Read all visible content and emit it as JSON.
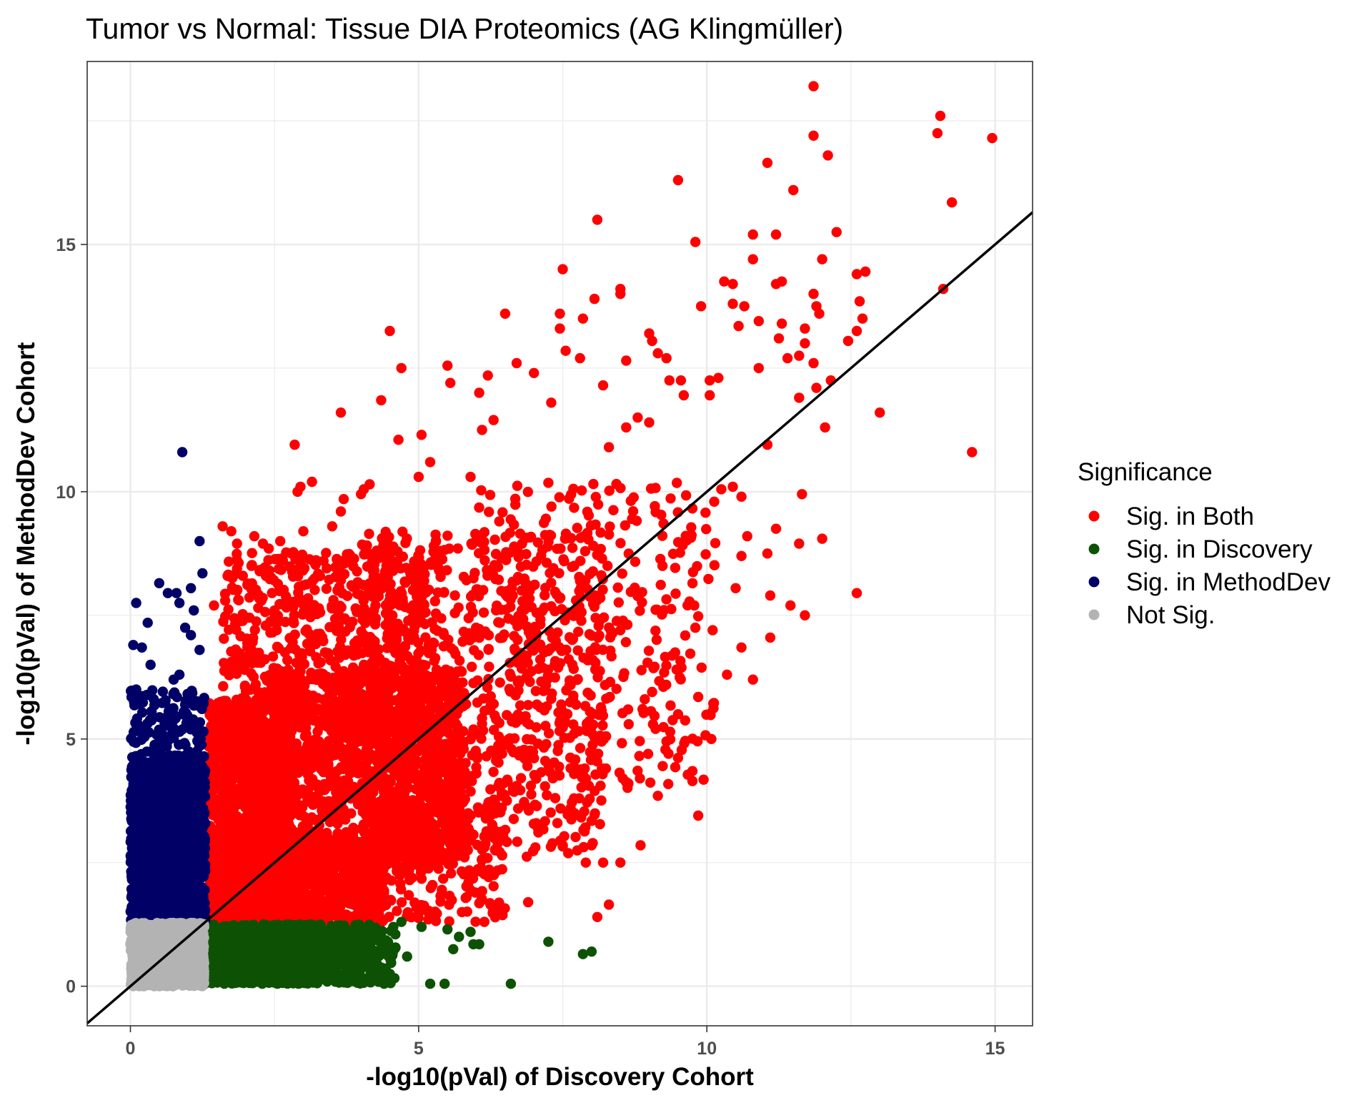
{
  "chart_data": {
    "type": "scatter",
    "title": "Tumor vs Normal: Tissue DIA Proteomics (AG Klingmüller)",
    "xlabel": "-log10(pVal) of Discovery Cohort",
    "ylabel": "-log10(pVal) of MethodDev Cohort",
    "xlim": [
      -0.75,
      15.65
    ],
    "ylim": [
      -0.8,
      18.7
    ],
    "x_ticks": [
      0,
      5,
      10,
      15
    ],
    "y_ticks": [
      0,
      5,
      10,
      15
    ],
    "x_tick_labels": [
      "0",
      "5",
      "10",
      "15"
    ],
    "y_tick_labels": [
      "0",
      "5",
      "10",
      "15"
    ],
    "grid": true,
    "reference_line": {
      "slope": 1,
      "intercept": 0
    },
    "legend": {
      "title": "Significance",
      "position": "right",
      "entries": [
        {
          "label": "Sig. in Both",
          "color": "#ff0000"
        },
        {
          "label": "Sig. in Discovery",
          "color": "#0d5204"
        },
        {
          "label": "Sig. in MethodDev",
          "color": "#000066"
        },
        {
          "label": "Not Sig.",
          "color": "#b3b3b3"
        }
      ]
    },
    "series": [
      {
        "name": "Sig. in Both",
        "color": "#ff0000",
        "points": [
          [
            11.85,
            18.2
          ],
          [
            14.05,
            17.6
          ],
          [
            14.0,
            17.25
          ],
          [
            11.85,
            17.2
          ],
          [
            14.95,
            17.15
          ],
          [
            12.1,
            16.8
          ],
          [
            11.05,
            16.65
          ],
          [
            9.5,
            16.3
          ],
          [
            11.5,
            16.1
          ],
          [
            14.25,
            15.85
          ],
          [
            8.1,
            15.5
          ],
          [
            12.25,
            15.25
          ],
          [
            10.8,
            15.2
          ],
          [
            11.2,
            15.2
          ],
          [
            9.8,
            15.05
          ],
          [
            10.8,
            14.7
          ],
          [
            12.0,
            14.7
          ],
          [
            7.5,
            14.5
          ],
          [
            12.75,
            14.45
          ],
          [
            12.6,
            14.4
          ],
          [
            11.3,
            14.25
          ],
          [
            10.3,
            14.25
          ],
          [
            10.45,
            14.2
          ],
          [
            11.2,
            14.2
          ],
          [
            14.1,
            14.1
          ],
          [
            8.5,
            14.1
          ],
          [
            8.5,
            14.0
          ],
          [
            11.85,
            14.0
          ],
          [
            8.05,
            13.9
          ],
          [
            12.65,
            13.85
          ],
          [
            10.45,
            13.8
          ],
          [
            11.9,
            13.75
          ],
          [
            10.65,
            13.75
          ],
          [
            9.9,
            13.75
          ],
          [
            11.95,
            13.6
          ],
          [
            6.5,
            13.6
          ],
          [
            7.45,
            13.6
          ],
          [
            7.85,
            13.5
          ],
          [
            12.7,
            13.5
          ],
          [
            10.9,
            13.45
          ],
          [
            11.3,
            13.4
          ],
          [
            7.45,
            13.3
          ],
          [
            10.55,
            13.35
          ],
          [
            11.7,
            13.3
          ],
          [
            4.5,
            13.25
          ],
          [
            12.6,
            13.25
          ],
          [
            9.0,
            13.2
          ],
          [
            11.25,
            13.1
          ],
          [
            9.05,
            13.05
          ],
          [
            12.45,
            13.05
          ],
          [
            11.7,
            13.0
          ],
          [
            7.55,
            12.85
          ],
          [
            9.15,
            12.8
          ],
          [
            11.6,
            12.75
          ],
          [
            7.8,
            12.7
          ],
          [
            8.6,
            12.65
          ],
          [
            9.3,
            12.7
          ],
          [
            11.4,
            12.7
          ],
          [
            6.7,
            12.6
          ],
          [
            11.85,
            12.6
          ],
          [
            5.5,
            12.55
          ],
          [
            4.7,
            12.5
          ],
          [
            10.9,
            12.5
          ],
          [
            7.0,
            12.4
          ],
          [
            6.2,
            12.35
          ],
          [
            9.55,
            12.25
          ],
          [
            10.05,
            12.25
          ],
          [
            10.2,
            12.3
          ],
          [
            9.35,
            12.25
          ],
          [
            12.15,
            12.25
          ],
          [
            5.55,
            12.2
          ],
          [
            8.2,
            12.15
          ],
          [
            11.9,
            12.1
          ],
          [
            6.05,
            12.0
          ],
          [
            10.05,
            11.95
          ],
          [
            9.6,
            11.95
          ],
          [
            11.6,
            11.9
          ],
          [
            4.35,
            11.85
          ],
          [
            7.3,
            11.8
          ],
          [
            13.0,
            11.6
          ],
          [
            3.65,
            11.6
          ],
          [
            8.8,
            11.5
          ],
          [
            6.3,
            11.45
          ],
          [
            9.0,
            11.4
          ],
          [
            8.6,
            11.3
          ],
          [
            12.05,
            11.3
          ],
          [
            6.1,
            11.25
          ],
          [
            5.05,
            11.15
          ],
          [
            4.65,
            11.05
          ],
          [
            2.85,
            10.95
          ],
          [
            11.05,
            10.95
          ],
          [
            8.3,
            10.9
          ],
          [
            14.6,
            10.8
          ],
          [
            5.2,
            10.6
          ],
          [
            5.0,
            10.3
          ],
          [
            5.9,
            10.3
          ],
          [
            3.15,
            10.2
          ],
          [
            2.95,
            10.1
          ],
          [
            4.05,
            10.05
          ],
          [
            4.15,
            10.15
          ],
          [
            10.25,
            10.05
          ],
          [
            2.9,
            10.0
          ],
          [
            10.45,
            10.1
          ],
          [
            4.0,
            9.95
          ],
          [
            3.7,
            9.85
          ],
          [
            10.6,
            9.9
          ],
          [
            3.65,
            9.6
          ],
          [
            11.65,
            9.95
          ],
          [
            3.5,
            9.3
          ],
          [
            3.0,
            9.2
          ],
          [
            2.6,
            9.0
          ],
          [
            2.3,
            8.95
          ],
          [
            2.15,
            9.1
          ],
          [
            1.6,
            9.3
          ],
          [
            1.75,
            9.2
          ],
          [
            1.85,
            8.95
          ],
          [
            2.4,
            8.85
          ],
          [
            12.0,
            9.05
          ],
          [
            11.2,
            9.25
          ],
          [
            10.7,
            9.1
          ],
          [
            11.05,
            8.75
          ],
          [
            11.6,
            8.95
          ],
          [
            10.6,
            8.7
          ],
          [
            3.35,
            8.6
          ],
          [
            2.1,
            8.5
          ],
          [
            1.95,
            8.3
          ],
          [
            1.85,
            8.0
          ],
          [
            2.5,
            7.6
          ],
          [
            1.45,
            7.7
          ],
          [
            10.5,
            8.05
          ],
          [
            11.1,
            7.9
          ],
          [
            11.45,
            7.7
          ],
          [
            12.6,
            7.95
          ],
          [
            11.1,
            7.05
          ],
          [
            11.7,
            7.5
          ],
          [
            10.1,
            7.2
          ],
          [
            9.8,
            7.25
          ],
          [
            10.6,
            6.85
          ],
          [
            10.35,
            6.3
          ],
          [
            10.8,
            6.2
          ],
          [
            9.85,
            5.85
          ],
          [
            9.45,
            6.75
          ],
          [
            9.05,
            5.95
          ],
          [
            9.5,
            5.5
          ],
          [
            9.3,
            4.95
          ],
          [
            9.75,
            4.15
          ],
          [
            9.75,
            4.35
          ],
          [
            9.85,
            3.45
          ],
          [
            9.15,
            3.85
          ],
          [
            8.85,
            2.85
          ],
          [
            8.5,
            2.5
          ],
          [
            8.2,
            2.5
          ],
          [
            7.9,
            2.5
          ],
          [
            8.3,
            1.65
          ],
          [
            8.1,
            1.4
          ],
          [
            6.9,
            1.7
          ],
          [
            6.1,
            1.75
          ],
          [
            5.75,
            1.5
          ],
          [
            5.25,
            1.4
          ],
          [
            8.0,
            2.85
          ]
        ],
        "cloud": [
          {
            "x": [
              1.35,
              2.8
            ],
            "y": [
              1.3,
              5.8
            ],
            "n": 1300
          },
          {
            "x": [
              1.35,
              4.4
            ],
            "y": [
              1.3,
              3.0
            ],
            "n": 1400
          },
          {
            "x": [
              2.4,
              5.8
            ],
            "y": [
              2.4,
              6.4
            ],
            "n": 1200
          },
          {
            "x": [
              1.6,
              5.5
            ],
            "y": [
              4.3,
              8.8
            ],
            "n": 800
          },
          {
            "x": [
              4.0,
              8.2
            ],
            "y": [
              2.6,
              9.2
            ],
            "n": 700
          },
          {
            "x": [
              6.0,
              10.2
            ],
            "y": [
              4.0,
              10.2
            ],
            "n": 360
          },
          {
            "x": [
              4.0,
              6.5
            ],
            "y": [
              1.3,
              3.8
            ],
            "n": 250
          }
        ]
      },
      {
        "name": "Sig. in Discovery",
        "color": "#0d5204",
        "points": [
          [
            4.7,
            1.3
          ],
          [
            5.05,
            1.2
          ],
          [
            5.5,
            1.15
          ],
          [
            5.7,
            1.0
          ],
          [
            5.9,
            1.1
          ],
          [
            5.95,
            0.85
          ],
          [
            6.05,
            0.85
          ],
          [
            5.6,
            0.75
          ],
          [
            7.25,
            0.9
          ],
          [
            7.85,
            0.65
          ],
          [
            8.0,
            0.7
          ],
          [
            6.6,
            0.05
          ],
          [
            5.2,
            0.05
          ],
          [
            5.45,
            0.05
          ],
          [
            4.4,
            0.05
          ],
          [
            4.5,
            0.25
          ],
          [
            4.25,
            0.45
          ],
          [
            4.8,
            0.6
          ],
          [
            3.9,
            0.85
          ],
          [
            4.1,
            1.1
          ]
        ],
        "cloud": [
          {
            "x": [
              1.25,
              3.3
            ],
            "y": [
              0.05,
              1.25
            ],
            "n": 1500
          },
          {
            "x": [
              3.0,
              4.6
            ],
            "y": [
              0.05,
              1.25
            ],
            "n": 280
          }
        ]
      },
      {
        "name": "Sig. in MethodDev",
        "color": "#000066",
        "points": [
          [
            0.9,
            10.8
          ],
          [
            1.2,
            9.0
          ],
          [
            1.25,
            8.35
          ],
          [
            0.5,
            8.15
          ],
          [
            0.65,
            7.95
          ],
          [
            0.8,
            7.95
          ],
          [
            1.05,
            8.05
          ],
          [
            0.85,
            7.75
          ],
          [
            0.1,
            7.75
          ],
          [
            1.1,
            7.6
          ],
          [
            0.3,
            7.35
          ],
          [
            0.95,
            7.25
          ],
          [
            1.05,
            7.1
          ],
          [
            0.05,
            6.9
          ],
          [
            0.2,
            6.85
          ],
          [
            1.2,
            6.8
          ],
          [
            0.35,
            6.5
          ],
          [
            0.85,
            6.3
          ],
          [
            0.75,
            6.2
          ],
          [
            0.1,
            6.0
          ]
        ],
        "cloud": [
          {
            "x": [
              0.0,
              1.3
            ],
            "y": [
              1.3,
              4.5
            ],
            "n": 1500
          },
          {
            "x": [
              0.0,
              1.3
            ],
            "y": [
              4.3,
              6.0
            ],
            "n": 170
          }
        ]
      },
      {
        "name": "Not Sig.",
        "color": "#b3b3b3",
        "points": [],
        "cloud": [
          {
            "x": [
              0.0,
              1.28
            ],
            "y": [
              0.0,
              1.28
            ],
            "n": 1800
          }
        ]
      }
    ]
  }
}
